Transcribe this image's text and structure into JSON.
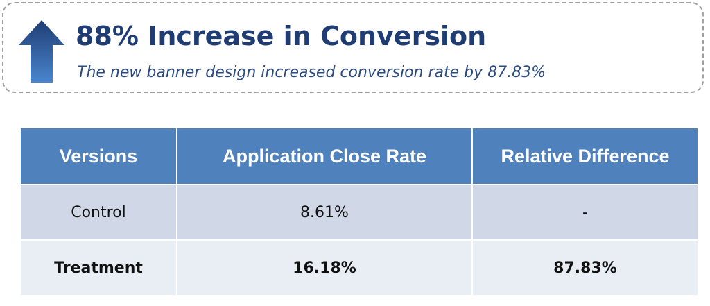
{
  "banner": {
    "title": "88% Increase in Conversion",
    "subtitle": "The new banner design increased conversion rate by 87.83%",
    "icon": "arrow-up-icon"
  },
  "table": {
    "headers": [
      "Versions",
      "Application Close Rate",
      "Relative Difference"
    ],
    "rows": [
      [
        "Control",
        "8.61%",
        "-"
      ],
      [
        "Treatment",
        "16.18%",
        "87.83%"
      ]
    ]
  },
  "colors": {
    "header_fill": "#4f81bd",
    "row_odd": "#d0d8e8",
    "row_even": "#e9edf4",
    "title": "#1f3d73"
  }
}
